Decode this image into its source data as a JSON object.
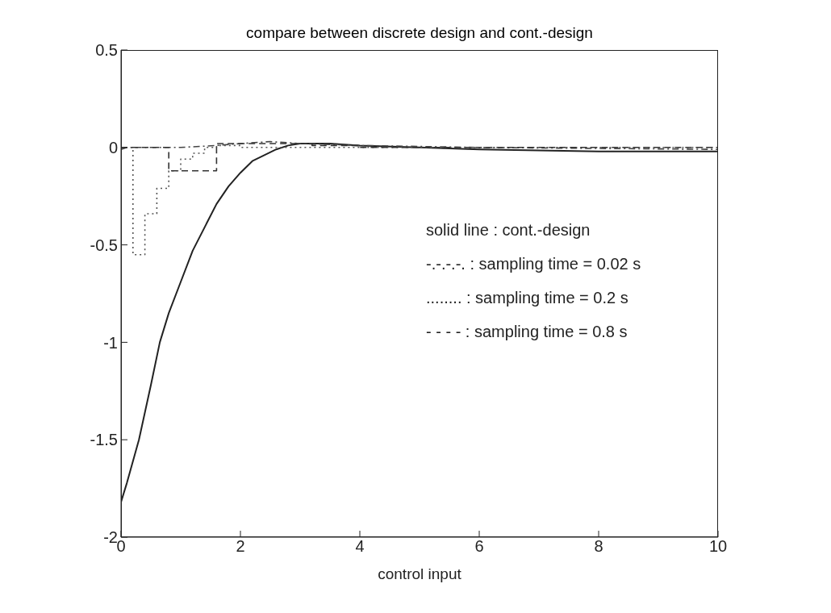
{
  "chart_data": {
    "type": "line",
    "title": "compare between discrete design and cont.-design",
    "xlabel": "control input",
    "xlim": [
      0,
      10
    ],
    "xticks": [
      0,
      2,
      4,
      6,
      8,
      10
    ],
    "ylim": [
      -2,
      0.5
    ],
    "yticks": [
      -2,
      -1.5,
      -1,
      -0.5,
      0,
      0.5
    ],
    "annotations": [
      "solid line : cont.-design",
      "-.-.-.-. : sampling time = 0.02 s",
      "........ : sampling time = 0.2 s",
      "- - - - : sampling time = 0.8 s"
    ],
    "series": [
      {
        "line_style": "solid",
        "color": "#222222",
        "x": [
          0,
          0.1,
          0.3,
          0.5,
          0.65,
          0.8,
          1.0,
          1.2,
          1.4,
          1.6,
          1.8,
          2.0,
          2.2,
          2.4,
          2.6,
          2.8,
          3.0,
          3.5,
          4,
          5,
          6,
          8,
          10
        ],
        "values": [
          -1.82,
          -1.72,
          -1.5,
          -1.22,
          -1.0,
          -0.85,
          -0.69,
          -0.53,
          -0.41,
          -0.29,
          -0.2,
          -0.13,
          -0.07,
          -0.04,
          -0.01,
          0.01,
          0.02,
          0.02,
          0.01,
          0,
          -0.01,
          -0.02,
          -0.02
        ]
      },
      {
        "line_style": "dashdot",
        "color": "#444444",
        "x": [
          0,
          0.1,
          1,
          1.6,
          2,
          2.5,
          3,
          4,
          6,
          10
        ],
        "values": [
          -0.01,
          0,
          0,
          0.01,
          0.02,
          0.03,
          0.02,
          0.01,
          0,
          -0.01
        ]
      },
      {
        "type": "step",
        "line_style": "dotted",
        "color": "#555555",
        "x": [
          0,
          0.2,
          0.4,
          0.6,
          0.8,
          1.0,
          1.2,
          1.4,
          1.6,
          1.8,
          2.0,
          3.0,
          10
        ],
        "values": [
          0,
          -0.55,
          -0.34,
          -0.21,
          -0.12,
          -0.06,
          -0.03,
          0,
          0.01,
          0.01,
          0,
          0,
          0
        ]
      },
      {
        "type": "step",
        "line_style": "dashed",
        "color": "#333333",
        "x": [
          0,
          0.8,
          1.6,
          2.4,
          3.2,
          4.0,
          4.8,
          10
        ],
        "values": [
          0,
          -0.12,
          0.02,
          0.02,
          0.01,
          0,
          0,
          0
        ]
      }
    ]
  }
}
